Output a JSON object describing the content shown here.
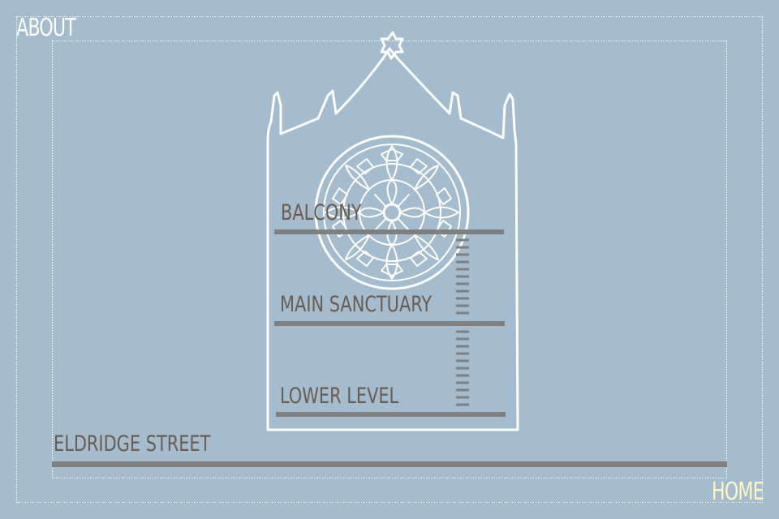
{
  "nav": {
    "about_label": "ABOUT",
    "home_label": "HOME"
  },
  "floors": {
    "balcony": "BALCONY",
    "main_sanctuary": "MAIN SANCTUARY",
    "lower_level": "LOWER LEVEL",
    "street": "ELDRIDGE STREET"
  },
  "colors": {
    "background": "#a4bccd",
    "outline": "#ffffff",
    "floor_text": "#6b5c50",
    "floor_line": "#7f7f7f",
    "home_text": "#fdf7c4"
  }
}
